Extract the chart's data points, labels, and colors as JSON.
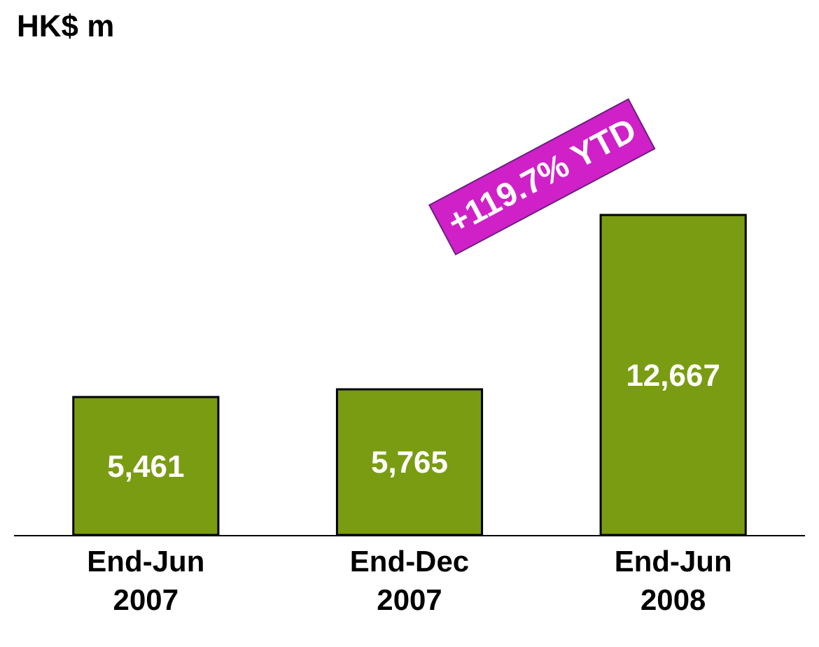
{
  "chart_data": {
    "type": "bar",
    "categories": [
      "End-Jun\n2007",
      "End-Dec\n2007",
      "End-Jun\n2008"
    ],
    "values": [
      5461,
      5765,
      12667
    ],
    "value_labels": [
      "5,461",
      "5,765",
      "12,667"
    ],
    "color": "#7a9c12",
    "annotations": [
      "HK$ m",
      "+119.7% YTD"
    ]
  }
}
